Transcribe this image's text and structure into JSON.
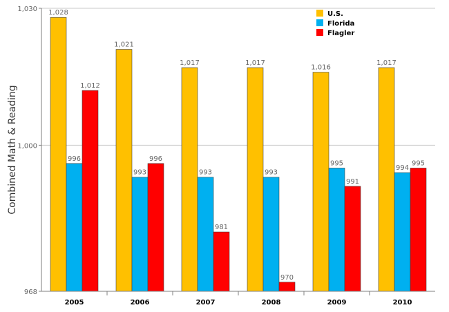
{
  "chart_data": {
    "type": "bar",
    "categories": [
      "2005",
      "2006",
      "2007",
      "2008",
      "2009",
      "2010"
    ],
    "series": [
      {
        "name": "U.S.",
        "color": "#FFC000",
        "values": [
          1028,
          1021,
          1017,
          1017,
          1016,
          1017
        ],
        "labels": [
          "1,028",
          "1,021",
          "1,017",
          "1,017",
          "1,016",
          "1,017"
        ]
      },
      {
        "name": "Florida",
        "color": "#00B0F0",
        "values": [
          996,
          993,
          993,
          993,
          995,
          994
        ],
        "labels": [
          "996",
          "993",
          "993",
          "993",
          "995",
          "994"
        ]
      },
      {
        "name": "Flagler",
        "color": "#FF0000",
        "values": [
          1012,
          996,
          981,
          970,
          991,
          995
        ],
        "labels": [
          "1,012",
          "996",
          "981",
          "970",
          "991",
          "995"
        ]
      }
    ],
    "title": "",
    "xlabel": "",
    "ylabel": "Combined Math & Reading",
    "ylim": [
      968,
      1030
    ],
    "yticks": [
      968,
      1000,
      1030
    ],
    "ytick_labels": [
      "968",
      "1,000",
      "1,030"
    ],
    "grid": true,
    "legend": "top-right"
  }
}
